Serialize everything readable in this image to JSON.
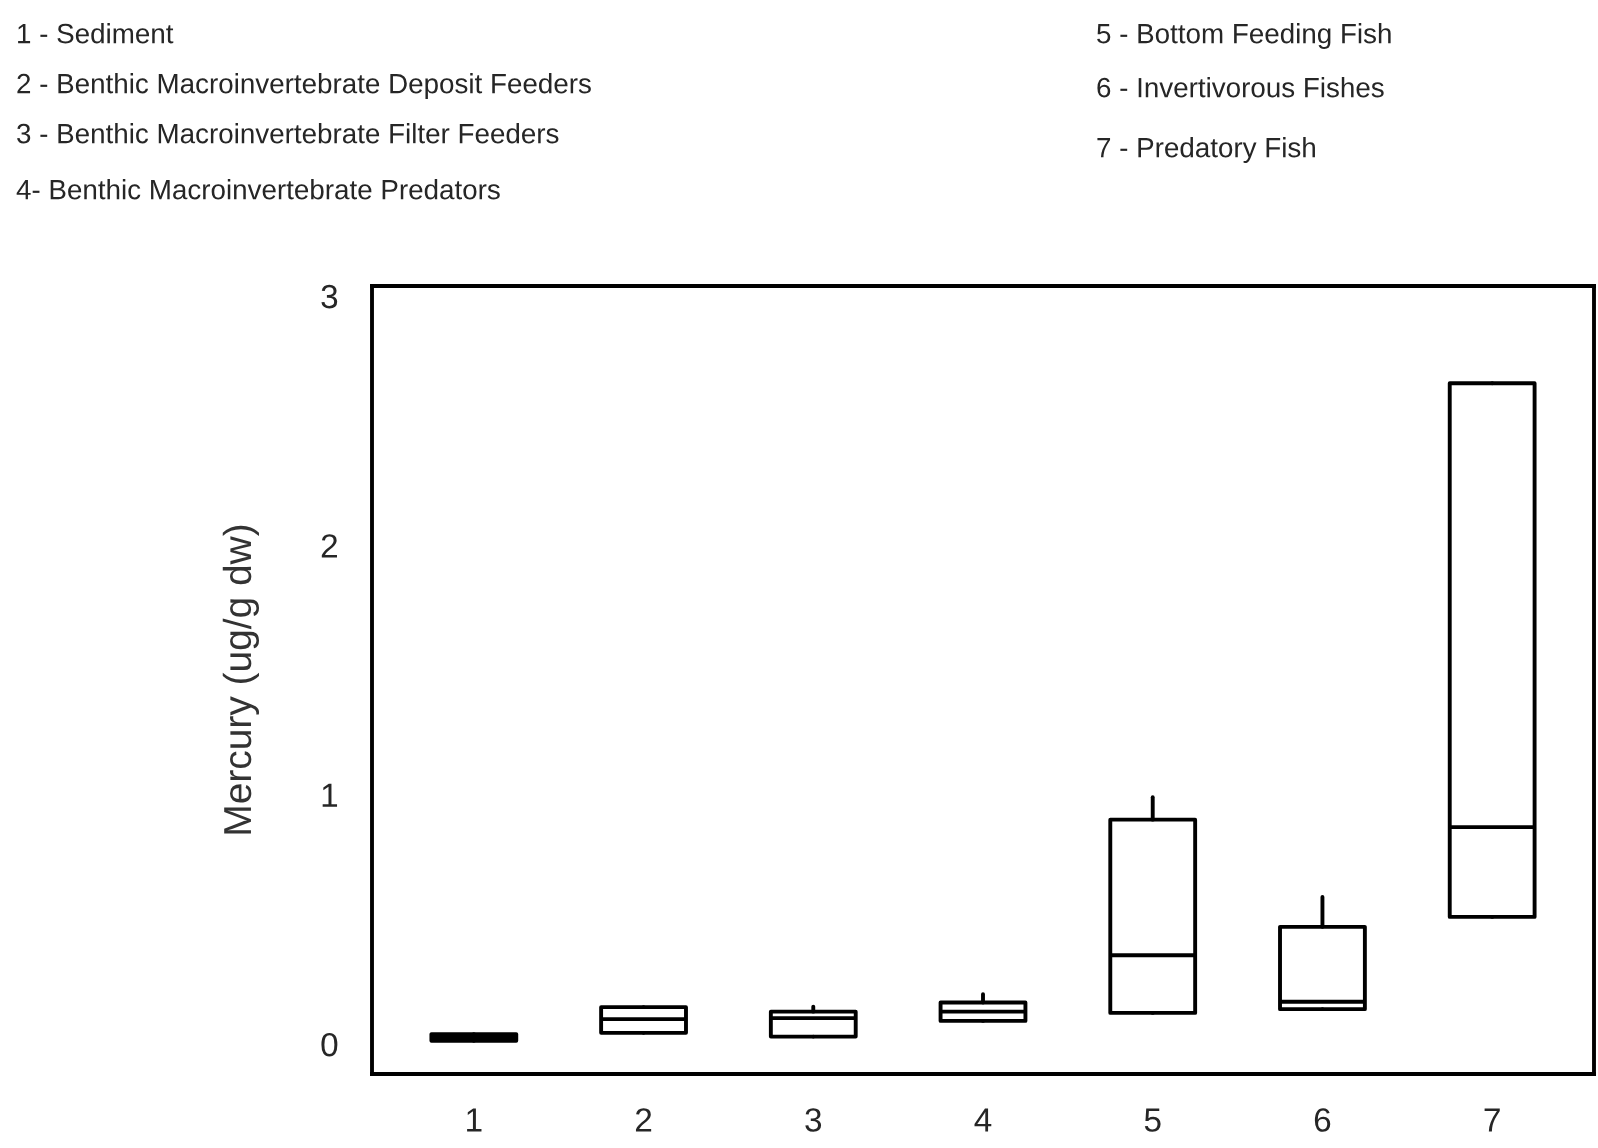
{
  "chart_data": {
    "type": "box",
    "ylabel": "Mercury (ug/g dw)",
    "categories": [
      "1",
      "2",
      "3",
      "4",
      "5",
      "6",
      "7"
    ],
    "boxes": [
      {
        "low": 0.013,
        "q1": 0.013,
        "median": 0.025,
        "q3": 0.04,
        "high": 0.04
      },
      {
        "low": 0.045,
        "q1": 0.045,
        "median": 0.1,
        "q3": 0.148,
        "high": 0.148
      },
      {
        "low": 0.03,
        "q1": 0.03,
        "median": 0.104,
        "q3": 0.13,
        "high": 0.15
      },
      {
        "low": 0.093,
        "q1": 0.093,
        "median": 0.13,
        "q3": 0.167,
        "high": 0.2
      },
      {
        "low": 0.125,
        "q1": 0.125,
        "median": 0.356,
        "q3": 0.9,
        "high": 0.99
      },
      {
        "low": 0.14,
        "q1": 0.14,
        "median": 0.17,
        "q3": 0.47,
        "high": 0.59
      },
      {
        "low": 0.51,
        "q1": 0.51,
        "median": 0.87,
        "q3": 2.65,
        "high": 2.65
      }
    ],
    "ylim": [
      -0.12,
      3.04
    ],
    "yticks": [
      0,
      1,
      2,
      3
    ],
    "grid": false,
    "annotations": [
      "1 - Sediment",
      "2 - Benthic Macroinvertebrate Deposit Feeders",
      "3 - Benthic Macroinvertebrate Filter Feeders",
      "4- Benthic Macroinvertebrate Predators",
      "5 - Bottom Feeding Fish",
      "6 - Invertivorous Fishes",
      "7 - Predatory Fish"
    ]
  }
}
